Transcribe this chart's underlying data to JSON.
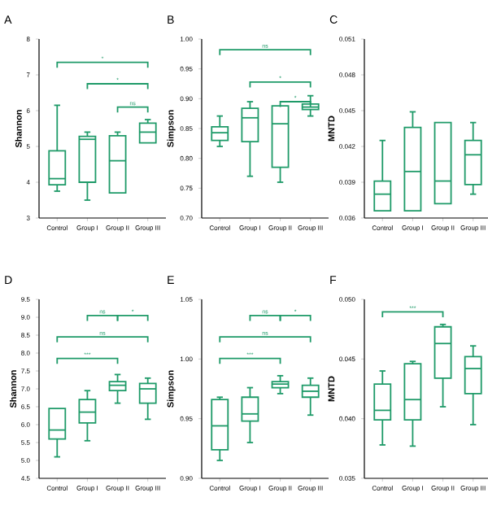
{
  "chart_data": [
    {
      "type": "box",
      "title": "A",
      "ylabel": "Shannon",
      "categories": [
        "Control",
        "Group I",
        "Group II",
        "Group III"
      ],
      "color": "#1e9a68",
      "ylim": [
        3,
        8
      ],
      "yticks": [
        3,
        4,
        5,
        6,
        7,
        8
      ],
      "boxes": [
        {
          "low": 3.75,
          "q1": 3.93,
          "median": 4.1,
          "q3": 4.88,
          "high": 6.15
        },
        {
          "low": 3.5,
          "q1": 4.0,
          "median": 5.2,
          "q3": 5.28,
          "high": 5.4
        },
        {
          "low": 3.7,
          "q1": 3.7,
          "median": 4.6,
          "q3": 5.3,
          "high": 5.4
        },
        {
          "low": 5.1,
          "q1": 5.1,
          "median": 5.4,
          "q3": 5.65,
          "high": 5.75
        }
      ],
      "annotations": [
        "*",
        "*",
        "ns"
      ]
    },
    {
      "type": "box",
      "title": "B",
      "ylabel": "Simpson",
      "categories": [
        "Control",
        "Group I",
        "Group II",
        "Group III"
      ],
      "color": "#1e9a68",
      "ylim": [
        0.7,
        1.0
      ],
      "yticks": [
        {
          "value": 0.7,
          "label": "0.70"
        },
        {
          "value": 0.75,
          "label": "0.75"
        },
        {
          "value": 0.8,
          "label": "0.80"
        },
        {
          "value": 0.85,
          "label": "0.85"
        },
        {
          "value": 0.9,
          "label": "0.90"
        },
        {
          "value": 0.95,
          "label": "0.95"
        },
        {
          "value": 1.0,
          "label": "1.00"
        }
      ],
      "boxes": [
        {
          "low": 0.82,
          "q1": 0.83,
          "median": 0.843,
          "q3": 0.853,
          "high": 0.871
        },
        {
          "low": 0.77,
          "q1": 0.828,
          "median": 0.868,
          "q3": 0.884,
          "high": 0.895
        },
        {
          "low": 0.76,
          "q1": 0.785,
          "median": 0.858,
          "q3": 0.888,
          "high": 0.888
        },
        {
          "low": 0.871,
          "q1": 0.882,
          "median": 0.886,
          "q3": 0.891,
          "high": 0.905
        }
      ],
      "annotations": [
        "ns",
        "*",
        "*"
      ]
    },
    {
      "type": "box",
      "title": "C",
      "ylabel": "MNTD",
      "categories": [
        "Control",
        "Group I",
        "Group II",
        "Group III"
      ],
      "color": "#1e9a68",
      "ylim": [
        0.036,
        0.051
      ],
      "yticks": [
        0.036,
        0.039,
        0.042,
        0.045,
        0.048,
        0.051
      ],
      "boxes": [
        {
          "low": 0.0366,
          "q1": 0.0366,
          "median": 0.038,
          "q3": 0.0391,
          "high": 0.0425
        },
        {
          "low": 0.0366,
          "q1": 0.0366,
          "median": 0.0399,
          "q3": 0.0436,
          "high": 0.0449
        },
        {
          "low": 0.0372,
          "q1": 0.0372,
          "median": 0.0391,
          "q3": 0.044,
          "high": 0.044
        },
        {
          "low": 0.038,
          "q1": 0.0388,
          "median": 0.0413,
          "q3": 0.0425,
          "high": 0.044
        }
      ]
    },
    {
      "type": "box",
      "title": "D",
      "ylabel": "Shannon",
      "categories": [
        "Control",
        "Group I",
        "Group II",
        "Group III"
      ],
      "color": "#1e9a68",
      "ylim": [
        4.5,
        9.5
      ],
      "yticks": [
        4.5,
        {
          "value": 5,
          "label": "5.0"
        },
        5.5,
        {
          "value": 6,
          "label": "6.0"
        },
        6.5,
        {
          "value": 7,
          "label": "7.0"
        },
        7.5,
        {
          "value": 8,
          "label": "8.0"
        },
        8.5,
        {
          "value": 9,
          "label": "9.0"
        },
        9.5
      ],
      "boxes": [
        {
          "low": 5.1,
          "q1": 5.6,
          "median": 5.85,
          "q3": 6.45,
          "high": 6.45
        },
        {
          "low": 5.55,
          "q1": 6.05,
          "median": 6.35,
          "q3": 6.7,
          "high": 6.95
        },
        {
          "low": 6.6,
          "q1": 6.95,
          "median": 7.1,
          "q3": 7.2,
          "high": 7.4
        },
        {
          "low": 6.15,
          "q1": 6.6,
          "median": 7.0,
          "q3": 7.15,
          "high": 7.3
        }
      ],
      "annotations": [
        "ns",
        "*",
        "ns",
        "***"
      ]
    },
    {
      "type": "box",
      "title": "E",
      "ylabel": "Simpson",
      "categories": [
        "Control",
        "Group I",
        "Group II",
        "Group III"
      ],
      "color": "#1e9a68",
      "ylim": [
        0.9,
        1.05
      ],
      "yticks": [
        {
          "value": 0.9,
          "label": "0.90"
        },
        0.95,
        {
          "value": 1.0,
          "label": "1.00"
        },
        1.05
      ],
      "boxes": [
        {
          "low": 0.915,
          "q1": 0.924,
          "median": 0.944,
          "q3": 0.966,
          "high": 0.968
        },
        {
          "low": 0.93,
          "q1": 0.948,
          "median": 0.954,
          "q3": 0.968,
          "high": 0.976
        },
        {
          "low": 0.971,
          "q1": 0.976,
          "median": 0.979,
          "q3": 0.981,
          "high": 0.986
        },
        {
          "low": 0.953,
          "q1": 0.968,
          "median": 0.973,
          "q3": 0.978,
          "high": 0.984
        }
      ],
      "annotations": [
        "ns",
        "*",
        "ns",
        "***"
      ]
    },
    {
      "type": "box",
      "title": "F",
      "ylabel": "MNTD",
      "categories": [
        "Control",
        "Group I",
        "Group II",
        "Group III"
      ],
      "color": "#1e9a68",
      "ylim": [
        0.035,
        0.05
      ],
      "yticks": [
        0.035,
        {
          "value": 0.04,
          "label": "0.040"
        },
        0.045,
        {
          "value": 0.05,
          "label": "0.050"
        }
      ],
      "boxes": [
        {
          "low": 0.0378,
          "q1": 0.0399,
          "median": 0.0407,
          "q3": 0.0429,
          "high": 0.044
        },
        {
          "low": 0.0377,
          "q1": 0.0399,
          "median": 0.0416,
          "q3": 0.0446,
          "high": 0.0448
        },
        {
          "low": 0.041,
          "q1": 0.0434,
          "median": 0.0463,
          "q3": 0.0477,
          "high": 0.0479
        },
        {
          "low": 0.0395,
          "q1": 0.0421,
          "median": 0.0442,
          "q3": 0.0452,
          "high": 0.0461
        }
      ],
      "annotations": [
        "***"
      ]
    }
  ]
}
